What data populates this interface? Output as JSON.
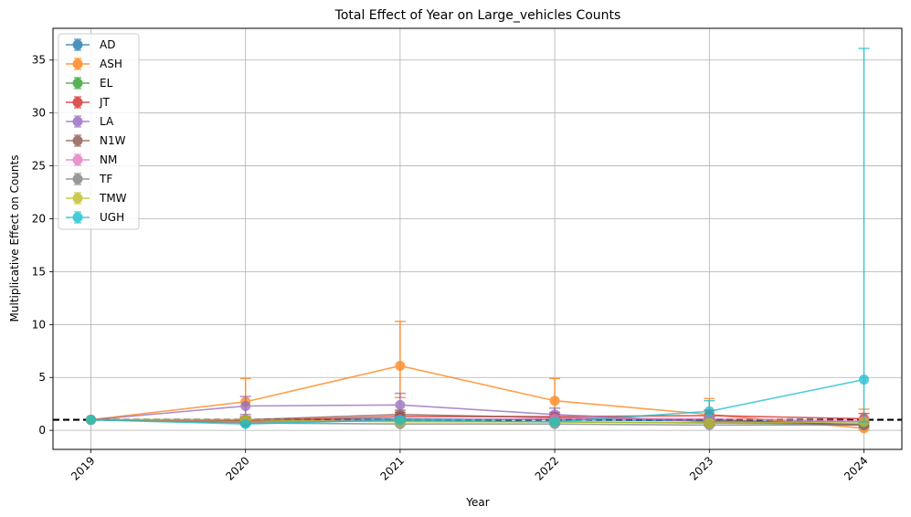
{
  "chart_data": {
    "type": "line",
    "title": "Total Effect of Year on Large_vehicles Counts",
    "xlabel": "Year",
    "ylabel": "Multiplicative Effect on Counts",
    "categories": [
      "2019",
      "2020",
      "2021",
      "2022",
      "2023",
      "2024"
    ],
    "ylim": [
      -1.8,
      38
    ],
    "yticks": [
      0,
      5,
      10,
      15,
      20,
      25,
      30,
      35
    ],
    "grid": true,
    "legend_position": "top-left",
    "reference_line": {
      "y": 1.0,
      "style": "dashed",
      "color": "#000000"
    },
    "series": [
      {
        "name": "AD",
        "color": "#1f77b4",
        "values": [
          1.0,
          0.9,
          1.1,
          1.0,
          0.9,
          0.8
        ],
        "err_low": [
          0,
          0.1,
          0.2,
          0.15,
          0.15,
          0.15
        ],
        "err_high": [
          0,
          0.2,
          0.3,
          0.2,
          0.2,
          0.2
        ]
      },
      {
        "name": "ASH",
        "color": "#ff7f0e",
        "values": [
          1.0,
          2.7,
          6.1,
          2.8,
          1.5,
          0.2
        ],
        "err_low": [
          0,
          1.5,
          3.0,
          1.5,
          0.7,
          0.1
        ],
        "err_high": [
          0,
          2.2,
          4.2,
          2.1,
          1.5,
          1.8
        ]
      },
      {
        "name": "EL",
        "color": "#2ca02c",
        "values": [
          1.0,
          0.8,
          0.9,
          0.8,
          0.7,
          0.6
        ],
        "err_low": [
          0,
          0.1,
          0.1,
          0.1,
          0.1,
          0.1
        ],
        "err_high": [
          0,
          0.2,
          0.2,
          0.2,
          0.2,
          0.2
        ]
      },
      {
        "name": "JT",
        "color": "#d62728",
        "values": [
          1.0,
          0.9,
          1.3,
          1.3,
          1.4,
          1.1
        ],
        "err_low": [
          0,
          0.2,
          0.3,
          0.3,
          0.3,
          0.3
        ],
        "err_high": [
          0,
          0.3,
          0.4,
          0.4,
          0.5,
          0.5
        ]
      },
      {
        "name": "LA",
        "color": "#9467bd",
        "values": [
          1.0,
          2.3,
          2.4,
          1.5,
          0.8,
          0.5
        ],
        "err_low": [
          0,
          0.8,
          1.0,
          0.5,
          0.3,
          0.2
        ],
        "err_high": [
          0,
          0.9,
          1.1,
          0.6,
          0.4,
          0.4
        ]
      },
      {
        "name": "N1W",
        "color": "#8c564b",
        "values": [
          1.0,
          1.0,
          1.5,
          1.2,
          1.0,
          0.5
        ],
        "err_low": [
          0,
          0.2,
          0.3,
          0.2,
          0.2,
          0.2
        ],
        "err_high": [
          0,
          0.3,
          0.4,
          0.3,
          0.3,
          0.3
        ]
      },
      {
        "name": "NM",
        "color": "#e377c2",
        "values": [
          1.0,
          0.8,
          1.0,
          1.1,
          1.1,
          0.9
        ],
        "err_low": [
          0,
          0.1,
          0.2,
          0.2,
          0.2,
          0.2
        ],
        "err_high": [
          0,
          0.2,
          0.3,
          0.3,
          0.3,
          0.3
        ]
      },
      {
        "name": "TF",
        "color": "#7f7f7f",
        "values": [
          1.0,
          0.7,
          0.6,
          0.6,
          0.5,
          0.5
        ],
        "err_low": [
          0,
          0.1,
          0.1,
          0.1,
          0.1,
          0.1
        ],
        "err_high": [
          0,
          0.2,
          0.2,
          0.2,
          0.2,
          0.2
        ]
      },
      {
        "name": "TMW",
        "color": "#bcbd22",
        "values": [
          1.0,
          1.0,
          0.8,
          0.8,
          0.7,
          0.8
        ],
        "err_low": [
          0,
          0.1,
          0.1,
          0.1,
          0.1,
          0.2
        ],
        "err_high": [
          0,
          0.2,
          0.2,
          0.2,
          0.2,
          0.3
        ]
      },
      {
        "name": "UGH",
        "color": "#17becf",
        "values": [
          1.0,
          0.6,
          1.0,
          0.8,
          1.8,
          4.8
        ],
        "err_low": [
          0,
          0.1,
          0.2,
          0.2,
          0.6,
          4.0
        ],
        "err_high": [
          0,
          0.2,
          0.3,
          0.3,
          1.0,
          31.3
        ]
      }
    ]
  }
}
